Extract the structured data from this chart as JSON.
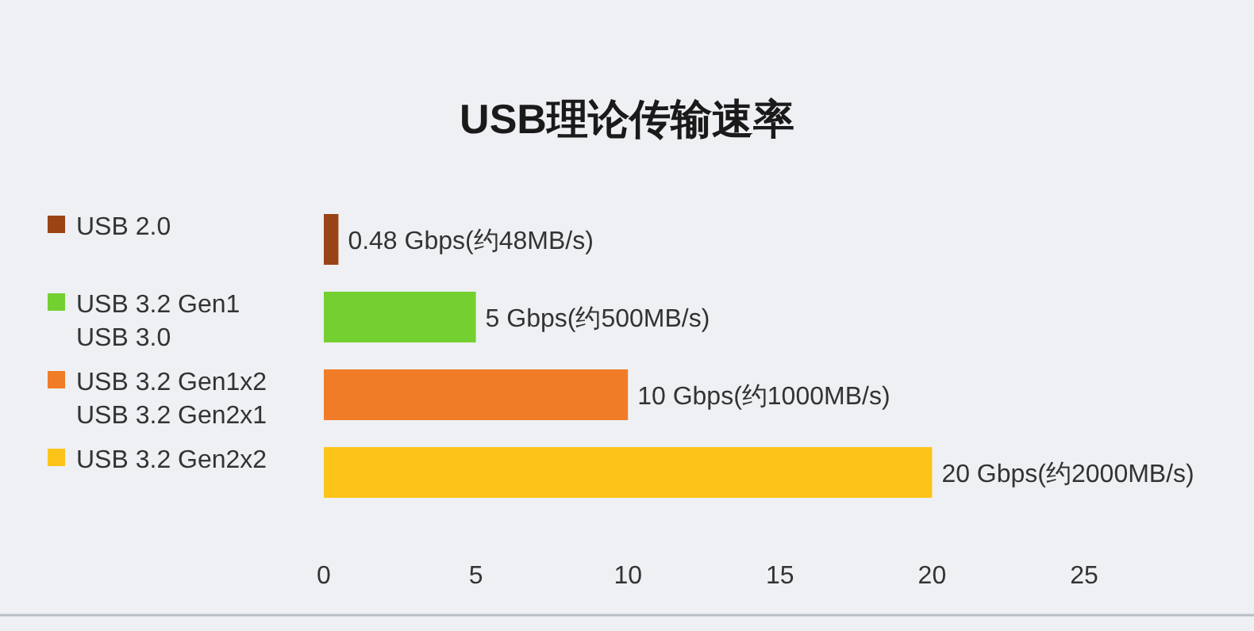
{
  "chart_data": {
    "type": "bar",
    "orientation": "horizontal",
    "title": "USB理论传输速率",
    "categories": [
      "USB 2.0",
      "USB 3.2 Gen1\nUSB 3.0",
      "USB 3.2 Gen1x2\nUSB 3.2 Gen2x1",
      "USB 3.2 Gen2x2"
    ],
    "values": [
      0.48,
      5,
      10,
      20
    ],
    "colors": [
      "#9a4415",
      "#74d030",
      "#f07c28",
      "#fcc418"
    ],
    "value_labels": [
      "0.48 Gbps(约48MB/s)",
      "5 Gbps(约500MB/s)",
      "10 Gbps(约1000MB/s)",
      "20 Gbps(约2000MB/s)"
    ],
    "xlim": [
      0,
      25
    ],
    "xticks": [
      0,
      5,
      10,
      15,
      20,
      25
    ],
    "grid": false
  }
}
